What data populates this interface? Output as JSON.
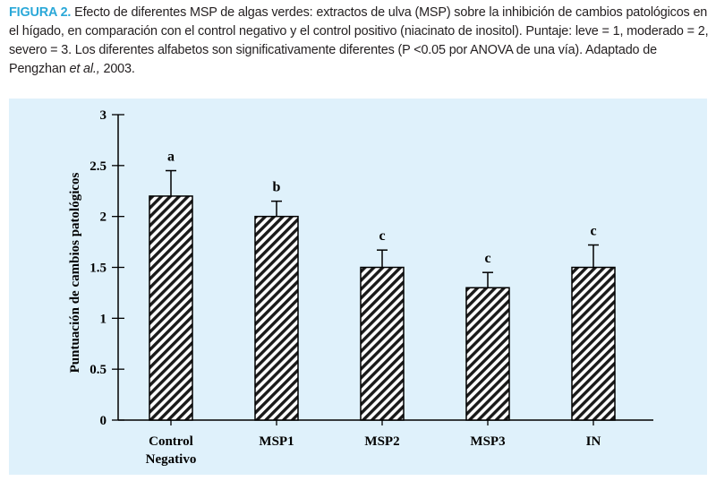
{
  "caption": {
    "figure_label": "FIGURA 2.",
    "text_main": "Efecto de diferentes MSP de algas verdes: extractos de ulva (MSP) sobre la inhibición de cambios patológicos en el hígado, en comparación con el control negativo y el control positivo (niacinato de inositol). Puntaje: leve = 1, moderado = 2, severo = 3. Los diferentes alfabetos son significativamente diferentes (P <0.05 por ANOVA de una vía). Adaptado de Pengzhan ",
    "text_italic": "et al.,",
    "text_end": " 2003."
  },
  "colors": {
    "panel_background": "#dff1fb",
    "figure_label": "#2aa8d8",
    "bar_fill_pattern": "black diagonal hatch on white"
  },
  "chart_data": {
    "type": "bar",
    "ylabel": "Puntuación de cambios patológicos",
    "xlabel": "",
    "ylim": [
      0,
      3
    ],
    "yticks": [
      0,
      0.5,
      1,
      1.5,
      2,
      2.5,
      3
    ],
    "ytick_labels": [
      "0",
      "0.5",
      "1",
      "1.5",
      "2",
      "2.5",
      "3"
    ],
    "categories": [
      [
        "Control",
        "Negativo"
      ],
      [
        "MSP1"
      ],
      [
        "MSP2"
      ],
      [
        "MSP3"
      ],
      [
        "IN"
      ]
    ],
    "values": [
      2.2,
      2.0,
      1.5,
      1.3,
      1.5
    ],
    "error_upper": [
      0.25,
      0.15,
      0.17,
      0.15,
      0.22
    ],
    "significance_letters": [
      "a",
      "b",
      "c",
      "c",
      "c"
    ],
    "grid": false,
    "legend": "none"
  }
}
